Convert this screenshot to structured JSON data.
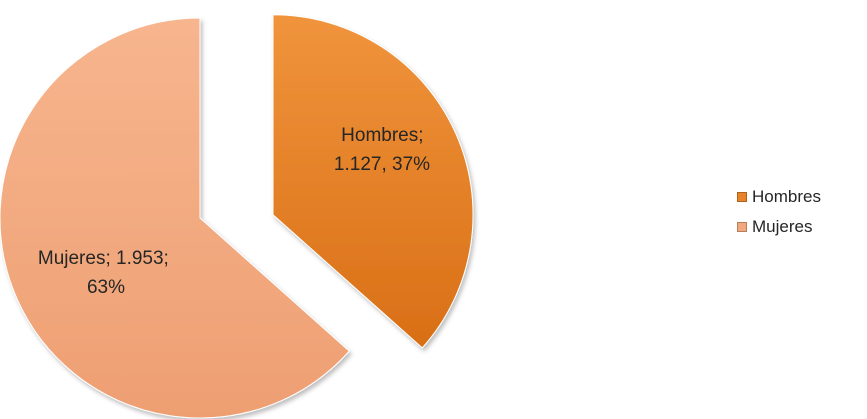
{
  "chart_data": {
    "type": "pie",
    "title": "",
    "slices": [
      {
        "name": "Hombres",
        "value": 1127,
        "value_label": "1.127",
        "percent_label": "37%",
        "color": "#e8832a"
      },
      {
        "name": "Mujeres",
        "value": 1953,
        "value_label": "1.953",
        "percent_label": "63%",
        "color": "#f2a97e"
      }
    ],
    "labels": {
      "hombres_line1": "Hombres;",
      "hombres_line2": "1.127, 37%",
      "mujeres_line1": "Mujeres; 1.953;",
      "mujeres_line2": "63%"
    },
    "legend": {
      "position": "right",
      "items": [
        {
          "name": "Hombres",
          "color": "#e8832a"
        },
        {
          "name": "Mujeres",
          "color": "#f2a97e"
        }
      ]
    },
    "exploded_slice": "Hombres"
  }
}
